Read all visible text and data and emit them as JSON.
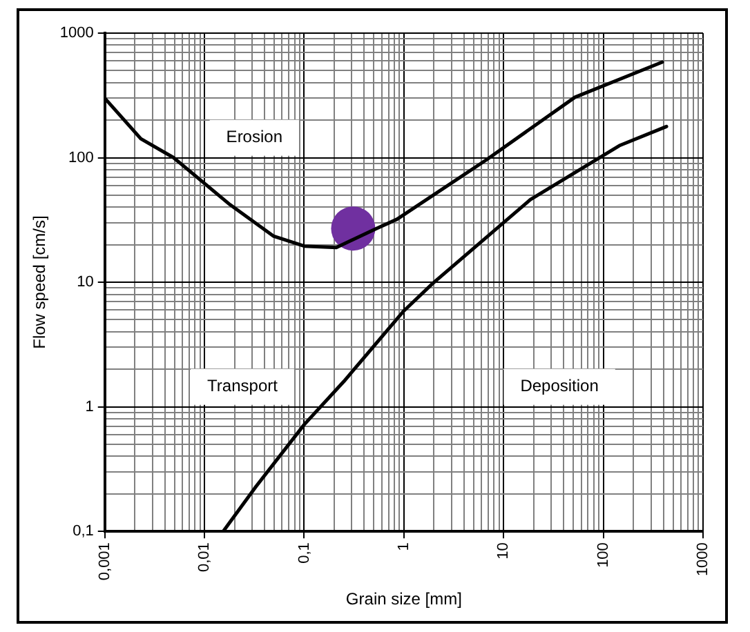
{
  "chart_data": {
    "type": "line",
    "xlabel": "Grain size [mm]",
    "ylabel": "Flow speed [cm/s]",
    "log": "xy",
    "grid": true,
    "legend": false,
    "marker": "none",
    "line_style": "solid",
    "xlim": [
      0.001,
      1000
    ],
    "ylim": [
      0.1,
      1000
    ],
    "xticks": [
      {
        "value": 0.001,
        "label": "0,001"
      },
      {
        "value": 0.01,
        "label": "0,01"
      },
      {
        "value": 0.1,
        "label": "0,1"
      },
      1,
      10,
      100,
      1000
    ],
    "yticks": [
      {
        "value": 0.1,
        "label": "0,1"
      },
      1,
      10,
      100,
      1000
    ],
    "series": [
      {
        "color": "#000000",
        "x": [
          0.001,
          0.0023,
          0.0049,
          0.018,
          0.049,
          0.1,
          0.21,
          0.53,
          0.85,
          6.7,
          52,
          390
        ],
        "values": [
          300,
          142,
          100,
          42,
          23.5,
          19.5,
          19,
          27,
          32,
          96,
          306,
          585
        ]
      },
      {
        "color": "#000000",
        "x": [
          0.0154,
          0.033,
          0.1,
          0.25,
          1,
          1.95,
          18.5,
          145,
          430
        ],
        "values": [
          0.1,
          0.23,
          0.72,
          1.6,
          5.9,
          9.8,
          46,
          125,
          178
        ]
      },
      {
        "type": "scatter",
        "marker": "circle",
        "color": "#7030a0",
        "x": [
          0.31
        ],
        "values": [
          27
        ]
      }
    ],
    "annotations": [
      "Erosion",
      "Transport",
      "Deposition"
    ]
  }
}
